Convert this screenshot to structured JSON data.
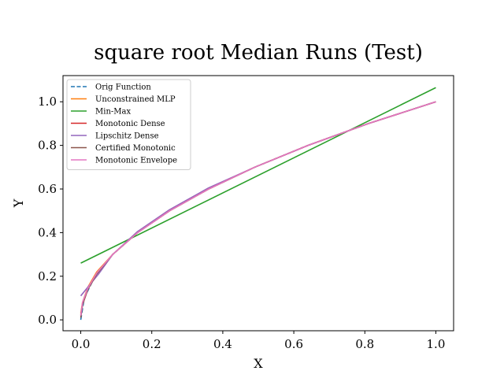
{
  "chart_data": {
    "type": "line",
    "title": "square root Median Runs (Test)",
    "xlabel": "X",
    "ylabel": "Y",
    "xlim": [
      -0.05,
      1.05
    ],
    "ylim": [
      -0.05,
      1.12
    ],
    "xticks": [
      0.0,
      0.2,
      0.4,
      0.6,
      0.8,
      1.0
    ],
    "xtick_labels": [
      "0.0",
      "0.2",
      "0.4",
      "0.6",
      "0.8",
      "1.0"
    ],
    "yticks": [
      0.0,
      0.2,
      0.4,
      0.6,
      0.8,
      1.0
    ],
    "ytick_labels": [
      "0.0",
      "0.2",
      "0.4",
      "0.6",
      "0.8",
      "1.0"
    ],
    "grid": false,
    "legend_position": "upper-left",
    "series": [
      {
        "name": "Orig Function",
        "color": "#1f77b4",
        "dash": "dashed",
        "x": [
          0,
          0.01,
          0.04,
          0.09,
          0.16,
          0.25,
          0.36,
          0.49,
          0.64,
          0.81,
          1.0
        ],
        "y": [
          0,
          0.1,
          0.2,
          0.3,
          0.4,
          0.5,
          0.6,
          0.7,
          0.8,
          0.9,
          1.0
        ]
      },
      {
        "name": "Unconstrained MLP",
        "color": "#ff7f0e",
        "dash": "solid",
        "x": [
          0,
          0.005,
          0.02,
          0.045,
          0.09,
          0.16,
          0.25,
          0.36,
          0.49,
          0.64,
          0.81,
          1.0
        ],
        "y": [
          0.03,
          0.08,
          0.15,
          0.22,
          0.3,
          0.4,
          0.5,
          0.6,
          0.7,
          0.8,
          0.9,
          1.0
        ]
      },
      {
        "name": "Min-Max",
        "color": "#2ca02c",
        "dash": "solid",
        "x": [
          0,
          1.0
        ],
        "y": [
          0.26,
          1.065
        ]
      },
      {
        "name": "Monotonic Dense",
        "color": "#d62728",
        "dash": "solid",
        "x": [
          0,
          0.005,
          0.02,
          0.045,
          0.09,
          0.16,
          0.25,
          0.36,
          0.49,
          0.64,
          0.81,
          1.0
        ],
        "y": [
          0.02,
          0.07,
          0.14,
          0.21,
          0.3,
          0.4,
          0.5,
          0.6,
          0.7,
          0.8,
          0.9,
          1.0
        ]
      },
      {
        "name": "Lipschitz Dense",
        "color": "#9467bd",
        "dash": "solid",
        "x": [
          0,
          0.02,
          0.05,
          0.09,
          0.16,
          0.25,
          0.36,
          0.49,
          0.64,
          0.81,
          1.0
        ],
        "y": [
          0.11,
          0.15,
          0.21,
          0.3,
          0.405,
          0.505,
          0.605,
          0.7,
          0.8,
          0.9,
          1.0
        ]
      },
      {
        "name": "Certified Monotonic",
        "color": "#8c564b",
        "dash": "solid",
        "x": [
          0,
          0.005,
          0.02,
          0.045,
          0.09,
          0.16,
          0.25,
          0.36,
          0.49,
          0.64,
          0.81,
          1.0
        ],
        "y": [
          0.01,
          0.07,
          0.14,
          0.21,
          0.3,
          0.4,
          0.5,
          0.6,
          0.7,
          0.8,
          0.9,
          1.0
        ]
      },
      {
        "name": "Monotonic Envelope",
        "color": "#e377c2",
        "dash": "solid",
        "x": [
          0,
          0.005,
          0.02,
          0.045,
          0.09,
          0.16,
          0.25,
          0.36,
          0.49,
          0.64,
          0.81,
          1.0
        ],
        "y": [
          0.02,
          0.08,
          0.145,
          0.215,
          0.3,
          0.4,
          0.5,
          0.6,
          0.7,
          0.8,
          0.9,
          1.0
        ]
      }
    ]
  }
}
